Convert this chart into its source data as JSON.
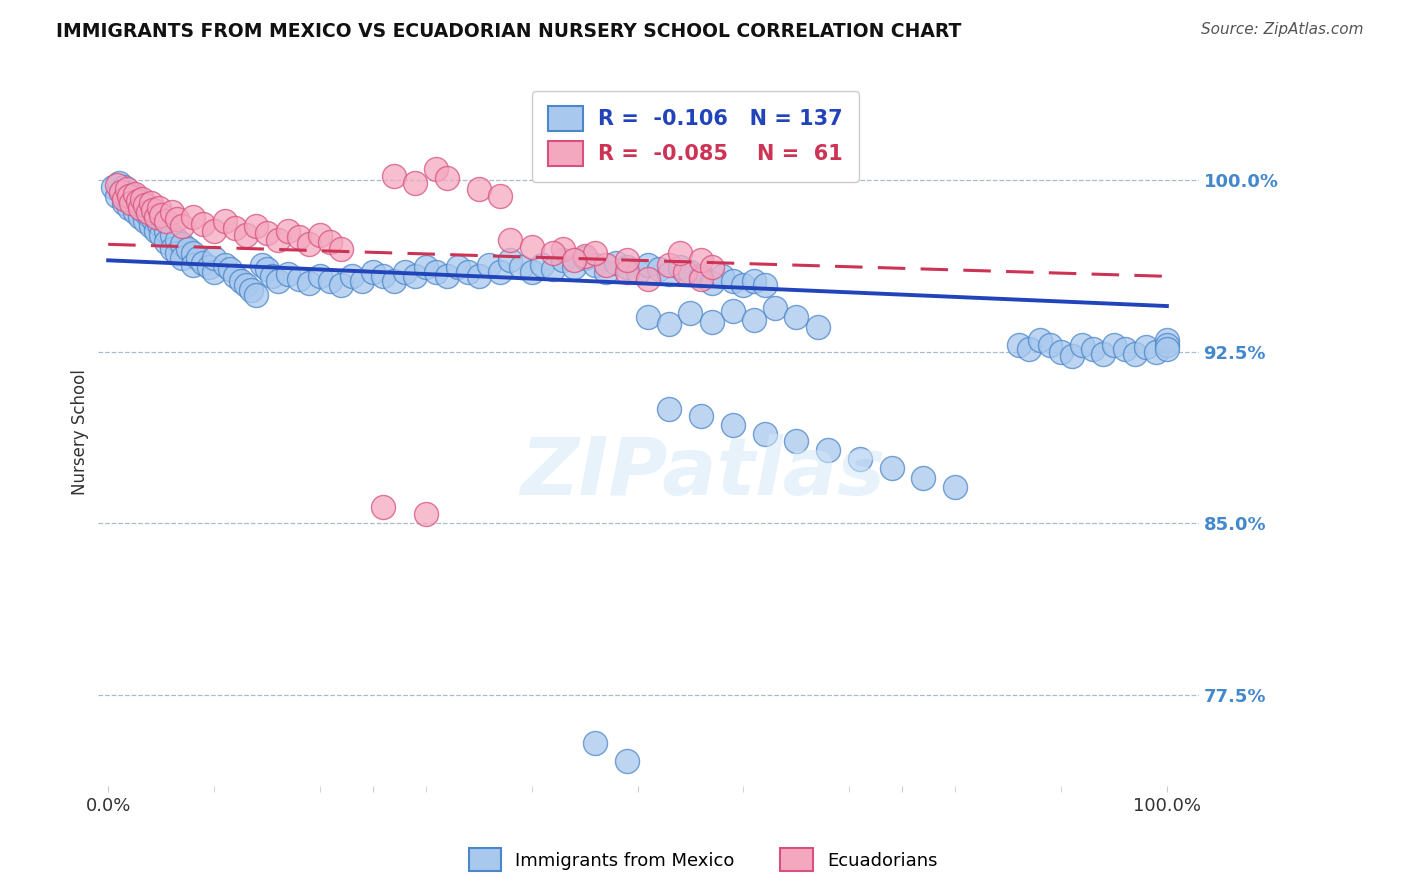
{
  "title": "IMMIGRANTS FROM MEXICO VS ECUADORIAN NURSERY SCHOOL CORRELATION CHART",
  "source": "Source: ZipAtlas.com",
  "ylabel": "Nursery School",
  "ytick_labels": [
    "100.0%",
    "92.5%",
    "85.0%",
    "77.5%"
  ],
  "ytick_values": [
    1.0,
    0.925,
    0.85,
    0.775
  ],
  "ymin": 0.735,
  "ymax": 1.045,
  "xmin": -0.01,
  "xmax": 1.03,
  "r_blue": -0.106,
  "n_blue": 137,
  "r_pink": -0.085,
  "n_pink": 61,
  "blue_color": "#A8C8EE",
  "blue_edge": "#4A86C8",
  "pink_color": "#F4A8C0",
  "pink_edge": "#D85080",
  "trend_blue": "#2244BB",
  "trend_pink": "#CC3355",
  "grid_color": "#AABBCC",
  "ytick_color": "#4488CC",
  "background": "#FFFFFF",
  "blue_trend_x0": 0.0,
  "blue_trend_y0": 0.965,
  "blue_trend_x1": 1.0,
  "blue_trend_y1": 0.945,
  "pink_trend_x0": 0.0,
  "pink_trend_y0": 0.972,
  "pink_trend_x1": 1.0,
  "pink_trend_y1": 0.958,
  "blue_x": [
    0.005,
    0.008,
    0.01,
    0.012,
    0.015,
    0.015,
    0.018,
    0.02,
    0.02,
    0.022,
    0.025,
    0.025,
    0.028,
    0.03,
    0.03,
    0.032,
    0.035,
    0.035,
    0.038,
    0.04,
    0.04,
    0.042,
    0.045,
    0.045,
    0.048,
    0.05,
    0.05,
    0.055,
    0.055,
    0.06,
    0.06,
    0.065,
    0.065,
    0.07,
    0.07,
    0.075,
    0.08,
    0.08,
    0.085,
    0.09,
    0.095,
    0.1,
    0.1,
    0.11,
    0.115,
    0.12,
    0.125,
    0.13,
    0.135,
    0.14,
    0.145,
    0.15,
    0.155,
    0.16,
    0.17,
    0.18,
    0.19,
    0.2,
    0.21,
    0.22,
    0.23,
    0.24,
    0.25,
    0.26,
    0.27,
    0.28,
    0.29,
    0.3,
    0.31,
    0.32,
    0.33,
    0.34,
    0.35,
    0.36,
    0.37,
    0.38,
    0.39,
    0.4,
    0.41,
    0.42,
    0.43,
    0.44,
    0.45,
    0.46,
    0.47,
    0.48,
    0.49,
    0.5,
    0.51,
    0.52,
    0.53,
    0.54,
    0.55,
    0.56,
    0.57,
    0.58,
    0.59,
    0.6,
    0.61,
    0.62,
    0.86,
    0.87,
    0.88,
    0.89,
    0.9,
    0.91,
    0.92,
    0.93,
    0.94,
    0.95,
    0.96,
    0.97,
    0.98,
    0.99,
    1.0,
    1.0,
    1.0,
    0.51,
    0.53,
    0.55,
    0.57,
    0.59,
    0.61,
    0.63,
    0.65,
    0.67,
    0.53,
    0.56,
    0.59,
    0.62,
    0.65,
    0.68,
    0.71,
    0.74,
    0.77,
    0.8,
    0.46,
    0.49
  ],
  "blue_y": [
    0.997,
    0.993,
    0.999,
    0.995,
    0.99,
    0.997,
    0.992,
    0.988,
    0.994,
    0.991,
    0.986,
    0.993,
    0.989,
    0.984,
    0.991,
    0.987,
    0.982,
    0.989,
    0.985,
    0.98,
    0.987,
    0.983,
    0.978,
    0.985,
    0.981,
    0.976,
    0.983,
    0.978,
    0.973,
    0.976,
    0.97,
    0.974,
    0.968,
    0.972,
    0.966,
    0.97,
    0.968,
    0.963,
    0.966,
    0.964,
    0.962,
    0.96,
    0.966,
    0.963,
    0.961,
    0.958,
    0.956,
    0.954,
    0.952,
    0.95,
    0.963,
    0.961,
    0.958,
    0.956,
    0.959,
    0.957,
    0.955,
    0.958,
    0.956,
    0.954,
    0.958,
    0.956,
    0.96,
    0.958,
    0.956,
    0.96,
    0.958,
    0.962,
    0.96,
    0.958,
    0.962,
    0.96,
    0.958,
    0.963,
    0.96,
    0.965,
    0.962,
    0.96,
    0.963,
    0.961,
    0.965,
    0.962,
    0.966,
    0.963,
    0.96,
    0.964,
    0.962,
    0.96,
    0.963,
    0.961,
    0.959,
    0.962,
    0.96,
    0.958,
    0.955,
    0.958,
    0.956,
    0.954,
    0.956,
    0.954,
    0.928,
    0.926,
    0.93,
    0.928,
    0.925,
    0.923,
    0.928,
    0.926,
    0.924,
    0.928,
    0.926,
    0.924,
    0.927,
    0.925,
    0.93,
    0.928,
    0.926,
    0.94,
    0.937,
    0.942,
    0.938,
    0.943,
    0.939,
    0.944,
    0.94,
    0.936,
    0.9,
    0.897,
    0.893,
    0.889,
    0.886,
    0.882,
    0.878,
    0.874,
    0.87,
    0.866,
    0.754,
    0.746
  ],
  "pink_x": [
    0.008,
    0.012,
    0.015,
    0.018,
    0.02,
    0.022,
    0.025,
    0.028,
    0.03,
    0.032,
    0.035,
    0.038,
    0.04,
    0.042,
    0.045,
    0.048,
    0.05,
    0.055,
    0.06,
    0.065,
    0.07,
    0.08,
    0.09,
    0.1,
    0.11,
    0.12,
    0.13,
    0.14,
    0.15,
    0.16,
    0.17,
    0.18,
    0.19,
    0.2,
    0.21,
    0.22,
    0.27,
    0.29,
    0.31,
    0.32,
    0.35,
    0.37,
    0.43,
    0.45,
    0.47,
    0.49,
    0.51,
    0.53,
    0.545,
    0.56,
    0.26,
    0.3,
    0.46,
    0.49,
    0.38,
    0.4,
    0.42,
    0.44,
    0.54,
    0.56,
    0.57
  ],
  "pink_y": [
    0.998,
    0.995,
    0.992,
    0.996,
    0.993,
    0.99,
    0.994,
    0.991,
    0.988,
    0.992,
    0.989,
    0.986,
    0.99,
    0.987,
    0.984,
    0.988,
    0.985,
    0.982,
    0.986,
    0.983,
    0.98,
    0.984,
    0.981,
    0.978,
    0.982,
    0.979,
    0.976,
    0.98,
    0.977,
    0.974,
    0.978,
    0.975,
    0.972,
    0.976,
    0.973,
    0.97,
    1.002,
    0.999,
    1.005,
    1.001,
    0.996,
    0.993,
    0.97,
    0.967,
    0.963,
    0.96,
    0.957,
    0.963,
    0.96,
    0.957,
    0.857,
    0.854,
    0.968,
    0.965,
    0.974,
    0.971,
    0.968,
    0.965,
    0.968,
    0.965,
    0.962
  ]
}
